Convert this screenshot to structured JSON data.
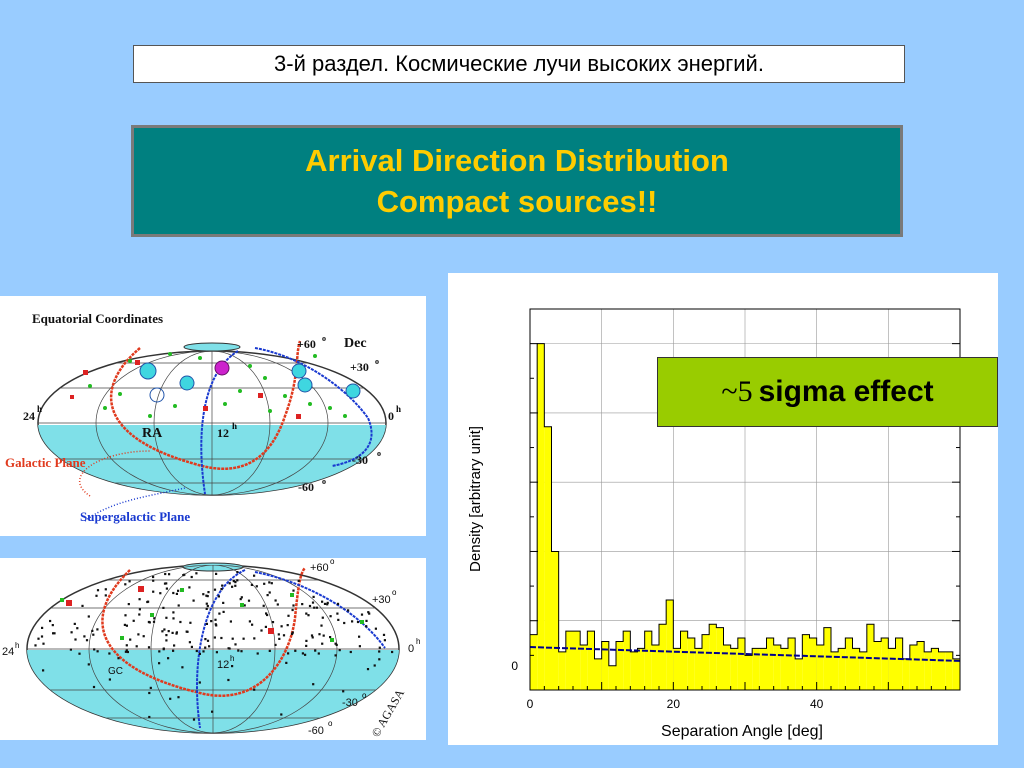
{
  "header": {
    "section_title": "3-й раздел. Космические лучи высоких энергий."
  },
  "title": {
    "line1": "Arrival Direction Distribution",
    "line2": "Compact sources!!"
  },
  "map_top": {
    "title": "Equatorial Coordinates",
    "dec_label": "Dec",
    "lat_p60": "+60",
    "lat_p30": "+30",
    "lat_m30": "-30",
    "lat_m60": "-60",
    "deg": "o",
    "hour": "h",
    "ra_label": "RA",
    "ra_24": "24",
    "ra_12": "12",
    "ra_0": "0",
    "galactic": "Galactic Plane",
    "supergalactic": "Supergalactic Plane",
    "colors": {
      "galactic": "#e03a1e",
      "supergalactic": "#1a3ad0",
      "sky": "#7fe0e8"
    }
  },
  "map_bottom": {
    "lat_p60": "+60",
    "lat_p30": "+30",
    "lat_m30": "-30",
    "lat_m60": "-60",
    "deg": "o",
    "hour": "h",
    "ra_24": "24",
    "ra_12": "12",
    "ra_0": "0",
    "gc": "GC",
    "credit": "© AGASA"
  },
  "sigma": {
    "tilde": "~5",
    "text": "sigma effect"
  },
  "chart_data": {
    "type": "bar",
    "xlabel": "Separation Angle [deg]",
    "ylabel": "Density [arbitrary unit]",
    "xticks": [
      0,
      20,
      40
    ],
    "ytick_labels": [
      "0"
    ],
    "xlim": [
      0,
      60
    ],
    "ylim": [
      0,
      5.5
    ],
    "bin_width": 1,
    "values": [
      0.8,
      5.0,
      3.8,
      2.0,
      0.55,
      0.85,
      0.85,
      0.65,
      0.85,
      0.45,
      0.7,
      0.35,
      0.7,
      0.85,
      0.55,
      0.6,
      0.85,
      0.65,
      0.95,
      1.3,
      0.6,
      0.85,
      0.75,
      0.6,
      0.8,
      0.95,
      0.9,
      0.65,
      0.6,
      0.75,
      0.5,
      0.6,
      0.6,
      0.75,
      0.65,
      0.6,
      0.75,
      0.45,
      0.8,
      0.75,
      0.65,
      0.9,
      0.55,
      0.6,
      0.75,
      0.6,
      0.55,
      0.95,
      0.7,
      0.75,
      0.6,
      0.75,
      0.45,
      0.65,
      0.7,
      0.55,
      0.6,
      0.55,
      0.55,
      0.45
    ],
    "fit_line": {
      "x": [
        0,
        60
      ],
      "y": [
        0.62,
        0.42
      ]
    },
    "colors": {
      "bars": "#ffff00",
      "fit": "#00008b"
    }
  }
}
